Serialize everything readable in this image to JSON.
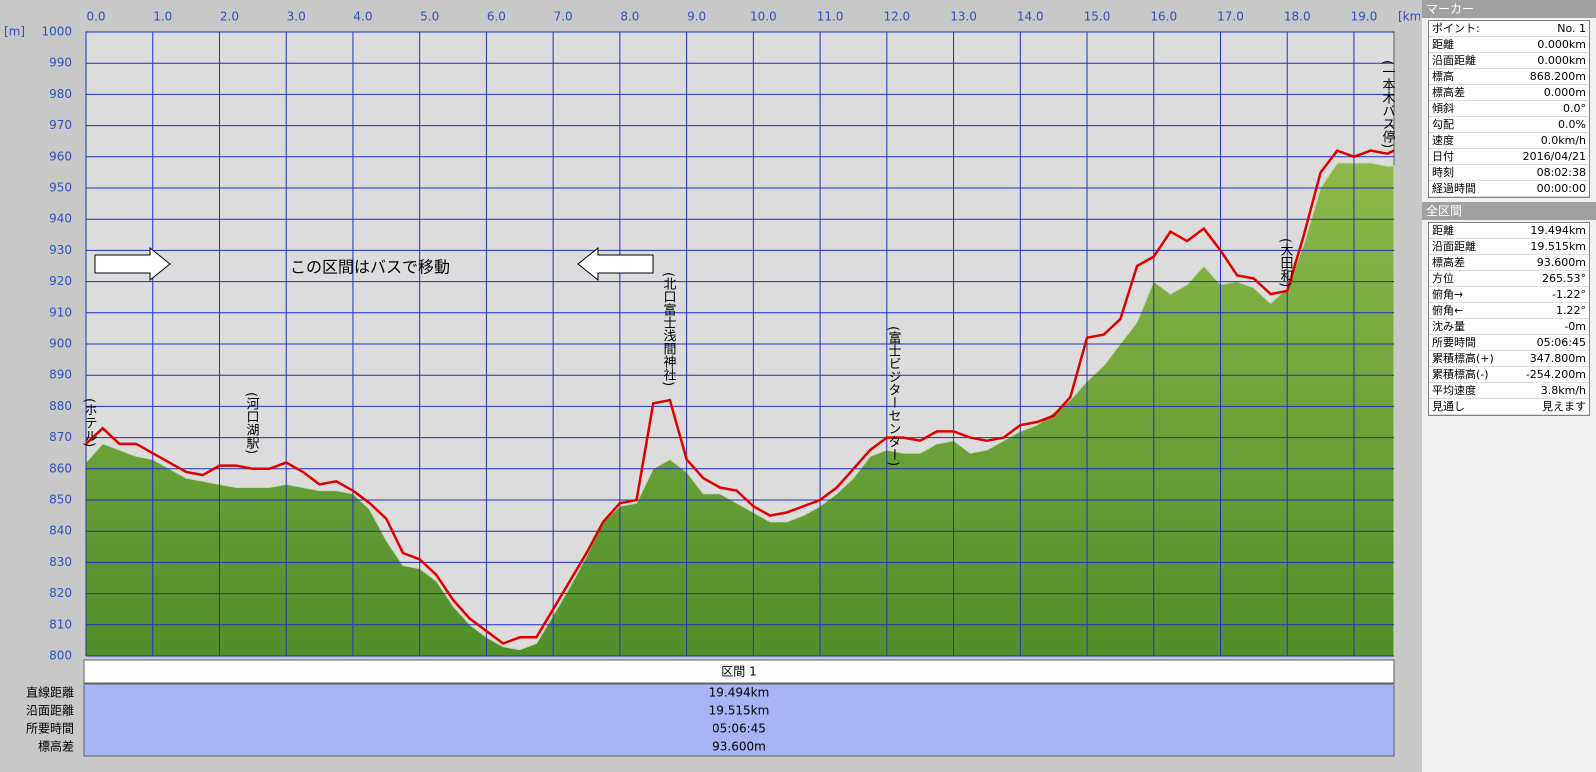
{
  "chart_data": {
    "type": "line",
    "y_unit": "[m]",
    "x_unit": "[km]",
    "note": "この区間はバスで移動",
    "xlim": [
      0,
      19.6
    ],
    "ylim": [
      800,
      1000
    ],
    "xticks": [
      {
        "value": 0,
        "label": "0.0"
      },
      {
        "value": 1,
        "label": "1.0"
      },
      {
        "value": 2,
        "label": "2.0"
      },
      {
        "value": 3,
        "label": "3.0"
      },
      {
        "value": 4,
        "label": "4.0"
      },
      {
        "value": 5,
        "label": "5.0"
      },
      {
        "value": 6,
        "label": "6.0"
      },
      {
        "value": 7,
        "label": "7.0"
      },
      {
        "value": 8,
        "label": "8.0"
      },
      {
        "value": 9,
        "label": "9.0"
      },
      {
        "value": 10,
        "label": "10.0"
      },
      {
        "value": 11,
        "label": "11.0"
      },
      {
        "value": 12,
        "label": "12.0"
      },
      {
        "value": 13,
        "label": "13.0"
      },
      {
        "value": 14,
        "label": "14.0"
      },
      {
        "value": 15,
        "label": "15.0"
      },
      {
        "value": 16,
        "label": "16.0"
      },
      {
        "value": 17,
        "label": "17.0"
      },
      {
        "value": 18,
        "label": "18.0"
      },
      {
        "value": 19,
        "label": "19.0"
      }
    ],
    "yticks": [
      800,
      810,
      820,
      830,
      840,
      850,
      860,
      870,
      880,
      890,
      900,
      910,
      920,
      930,
      940,
      950,
      960,
      970,
      980,
      990,
      1000
    ],
    "grid": true,
    "x": [
      0,
      0.25,
      0.5,
      0.75,
      1,
      1.25,
      1.5,
      1.75,
      2,
      2.25,
      2.5,
      2.75,
      3,
      3.25,
      3.5,
      3.75,
      4,
      4.25,
      4.5,
      4.75,
      5,
      5.25,
      5.5,
      5.75,
      6,
      6.25,
      6.5,
      6.75,
      7,
      7.25,
      7.5,
      7.75,
      8,
      8.25,
      8.5,
      8.75,
      9,
      9.25,
      9.5,
      9.75,
      10,
      10.25,
      10.5,
      10.75,
      11,
      11.25,
      11.5,
      11.75,
      12,
      12.25,
      12.5,
      12.75,
      13,
      13.25,
      13.5,
      13.75,
      14,
      14.25,
      14.5,
      14.75,
      15,
      15.25,
      15.5,
      15.75,
      16,
      16.25,
      16.5,
      16.75,
      17,
      17.25,
      17.5,
      17.75,
      18,
      18.25,
      18.5,
      18.75,
      19,
      19.25,
      19.5,
      19.6
    ],
    "series": [
      {
        "kind": "area",
        "color": "#62a035",
        "values": [
          862,
          868,
          866,
          864,
          863,
          860,
          857,
          856,
          855,
          854,
          854,
          854,
          855,
          854,
          853,
          853,
          852,
          847,
          837,
          829,
          828,
          824,
          816,
          810,
          806,
          803,
          802,
          804,
          813,
          822,
          832,
          843,
          848,
          849,
          860,
          863,
          859,
          852,
          852,
          849,
          846,
          843,
          843,
          845,
          848,
          852,
          857,
          864,
          866,
          865,
          865,
          868,
          869,
          865,
          866,
          869,
          872,
          874,
          878,
          882,
          888,
          893,
          900,
          907,
          920,
          916,
          919,
          925,
          919,
          920,
          918,
          913,
          918,
          932,
          950,
          958,
          958,
          958,
          957,
          957
        ]
      },
      {
        "kind": "line",
        "color": "#e00000",
        "values": [
          868,
          873,
          868,
          868,
          865,
          862,
          859,
          858,
          861,
          861,
          860,
          860,
          862,
          859,
          855,
          856,
          853,
          849,
          844,
          833,
          831,
          826,
          818,
          812,
          808,
          804,
          806,
          806,
          815,
          824,
          833,
          843,
          849,
          850,
          881,
          882,
          863,
          857,
          854,
          853,
          848,
          845,
          846,
          848,
          850,
          854,
          860,
          866,
          870,
          870,
          869,
          872,
          872,
          870,
          869,
          870,
          874,
          875,
          877,
          883,
          902,
          903,
          908,
          925,
          928,
          936,
          933,
          937,
          930,
          922,
          921,
          916,
          917,
          935,
          955,
          962,
          960,
          962,
          961,
          962
        ]
      }
    ],
    "annotations": [
      "(ホテル)",
      "(河口湖駅)",
      "(北口富士浅間神社)",
      "(富士ビジターセンター)",
      "(大田和)",
      "(一本木バス停)"
    ]
  },
  "section": {
    "title": "区間 1",
    "rows": [
      [
        "直線距離",
        "19.494km"
      ],
      [
        "沿面距離",
        "19.515km"
      ],
      [
        "所要時間",
        "05:06:45"
      ],
      [
        "標高差",
        "93.600m"
      ]
    ]
  },
  "marker": {
    "title": "マーカー",
    "rows": [
      [
        "ポイント:",
        "No. 1"
      ],
      [
        "距離",
        "0.000km"
      ],
      [
        "沿面距離",
        "0.000km"
      ],
      [
        "標高",
        "868.200m"
      ],
      [
        "標高差",
        "0.000m"
      ],
      [
        "傾斜",
        "0.0°"
      ],
      [
        "勾配",
        "0.0%"
      ],
      [
        "速度",
        "0.0km/h"
      ],
      [
        "日付",
        "2016/04/21"
      ],
      [
        "時刻",
        "08:02:38"
      ],
      [
        "経過時間",
        "00:00:00"
      ]
    ]
  },
  "total": {
    "title": "全区間",
    "rows": [
      [
        "距離",
        "19.494km"
      ],
      [
        "沿面距離",
        "19.515km"
      ],
      [
        "標高差",
        "93.600m"
      ],
      [
        "方位",
        "265.53°"
      ],
      [
        "俯角→",
        "-1.22°"
      ],
      [
        "俯角←",
        "1.22°"
      ],
      [
        "沈み量",
        "-0m"
      ],
      [
        "所要時間",
        "05:06:45"
      ],
      [
        "累積標高(+)",
        "347.800m"
      ],
      [
        "累積標高(-)",
        "-254.200m"
      ],
      [
        "平均速度",
        "3.8km/h"
      ],
      [
        "見通し",
        "見えます"
      ]
    ]
  }
}
